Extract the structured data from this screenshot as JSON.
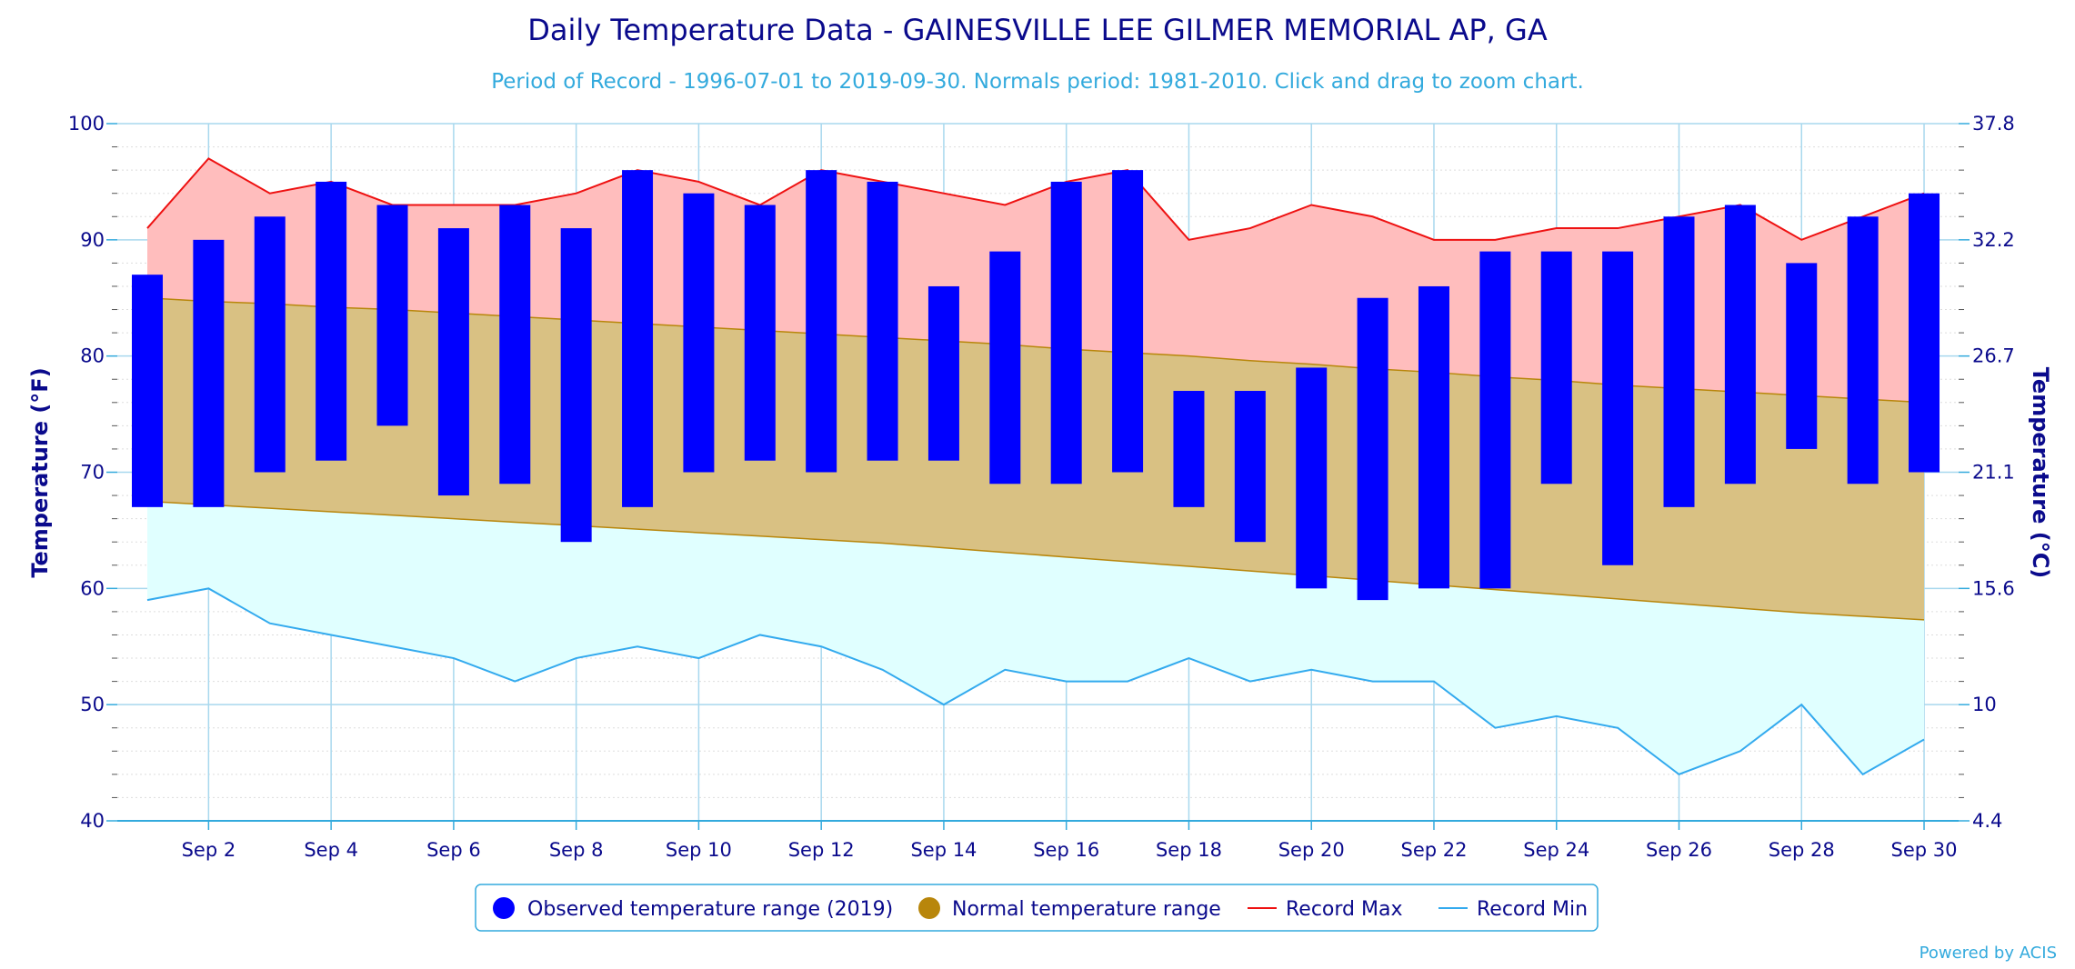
{
  "chart_data": {
    "type": "bar",
    "title": "Daily Temperature Data - GAINESVILLE LEE GILMER MEMORIAL AP, GA",
    "subtitle": "Period of Record - 1996-07-01 to 2019-09-30. Normals period: 1981-2010. Click and drag to zoom chart.",
    "ylabel": "Temperature (°F)",
    "y2label": "Temperature (°C)",
    "ylim": [
      40,
      100
    ],
    "yticks": [
      "40",
      "50",
      "60",
      "70",
      "80",
      "90",
      "100"
    ],
    "y2ticks": [
      "4.4",
      "10",
      "15.6",
      "21.1",
      "26.7",
      "32.2",
      "37.8"
    ],
    "xticks": [
      "Sep 2",
      "Sep 4",
      "Sep 6",
      "Sep 8",
      "Sep 10",
      "Sep 12",
      "Sep 14",
      "Sep 16",
      "Sep 18",
      "Sep 20",
      "Sep 22",
      "Sep 24",
      "Sep 26",
      "Sep 28",
      "Sep 30"
    ],
    "days": [
      1,
      2,
      3,
      4,
      5,
      6,
      7,
      8,
      9,
      10,
      11,
      12,
      13,
      14,
      15,
      16,
      17,
      18,
      19,
      20,
      21,
      22,
      23,
      24,
      25,
      26,
      27,
      28,
      29,
      30
    ],
    "grid": true,
    "legend_position": "bottom-center",
    "series": [
      {
        "name": "Observed temperature range (2019)",
        "type": "columnrange",
        "color": "#0000ff",
        "low": [
          67,
          67,
          70,
          71,
          74,
          68,
          69,
          64,
          67,
          70,
          71,
          70,
          71,
          71,
          69,
          69,
          70,
          67,
          64,
          60,
          59,
          60,
          60,
          69,
          62,
          67,
          69,
          72,
          69,
          70
        ],
        "high": [
          87,
          90,
          92,
          95,
          93,
          91,
          93,
          91,
          96,
          94,
          93,
          96,
          95,
          86,
          89,
          95,
          96,
          77,
          77,
          79,
          85,
          86,
          89,
          89,
          89,
          92,
          93,
          88,
          92,
          94
        ]
      },
      {
        "name": "Normal temperature range",
        "type": "arearange",
        "color": "#b8860b",
        "fill": "#d9c183",
        "low": [
          67.5,
          67.2,
          66.9,
          66.6,
          66.3,
          66.0,
          65.7,
          65.4,
          65.1,
          64.8,
          64.5,
          64.2,
          63.9,
          63.5,
          63.1,
          62.7,
          62.3,
          61.9,
          61.5,
          61.1,
          60.7,
          60.3,
          59.9,
          59.5,
          59.1,
          58.7,
          58.3,
          57.9,
          57.6,
          57.3
        ],
        "high": [
          85.0,
          84.7,
          84.5,
          84.2,
          84.0,
          83.7,
          83.4,
          83.1,
          82.8,
          82.5,
          82.2,
          81.9,
          81.6,
          81.3,
          81.0,
          80.6,
          80.3,
          80.0,
          79.6,
          79.3,
          78.9,
          78.6,
          78.2,
          77.9,
          77.5,
          77.2,
          76.9,
          76.6,
          76.3,
          76.0
        ]
      },
      {
        "name": "Record Max",
        "type": "line",
        "color": "#ee1111",
        "fill": "#ffbdbd",
        "values": [
          91,
          97,
          94,
          95,
          93,
          93,
          93,
          94,
          96,
          95,
          93,
          96,
          95,
          94,
          93,
          95,
          96,
          90,
          91,
          93,
          92,
          90,
          90,
          91,
          91,
          92,
          93,
          90,
          92,
          94
        ]
      },
      {
        "name": "Record Min",
        "type": "line",
        "color": "#33aaee",
        "fill": "#e0ffff",
        "values": [
          59,
          60,
          57,
          56,
          55,
          54,
          52,
          54,
          55,
          54,
          56,
          55,
          53,
          50,
          53,
          52,
          52,
          54,
          52,
          53,
          52,
          52,
          48,
          49,
          48,
          44,
          46,
          50,
          44,
          47
        ]
      }
    ],
    "credit": "Powered by ACIS"
  }
}
